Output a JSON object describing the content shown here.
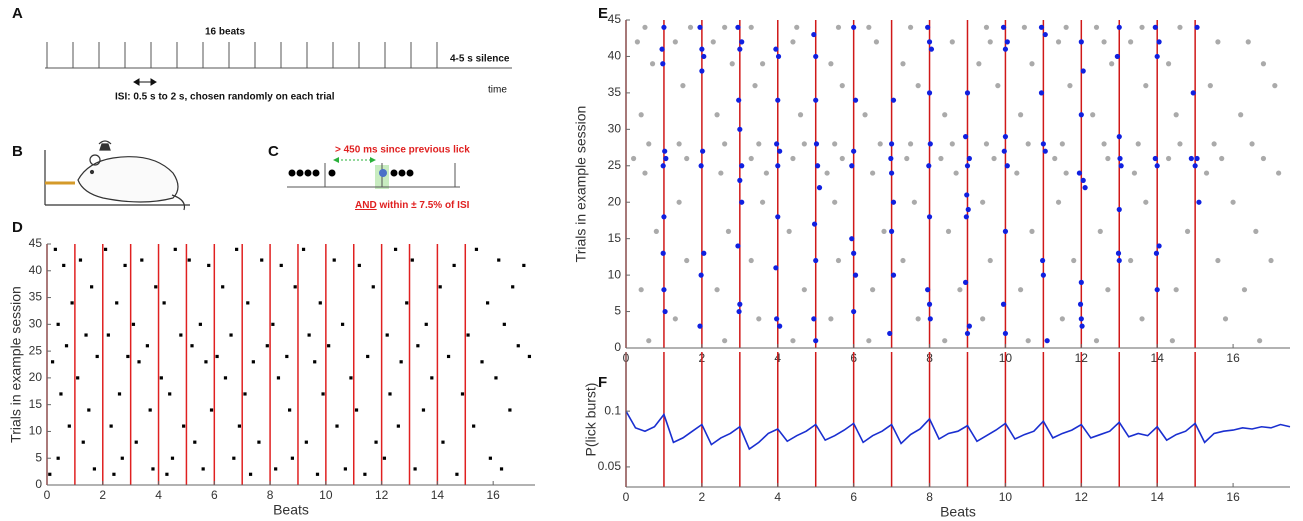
{
  "panel_a": {
    "label": "A",
    "beats_text": "16 beats",
    "silence_text": "4-5 s silence",
    "time_text": "time",
    "isi_text": "ISI: 0.5 s to 2 s, chosen randomly on each trial"
  },
  "panel_b": {
    "label": "B"
  },
  "panel_c": {
    "label": "C",
    "lick_text": "> 450 ms since previous lick",
    "and_text": "AND",
    "within_text": " within ± 7.5% of ISI"
  },
  "chart_data": [
    {
      "type": "scatter",
      "panel": "D",
      "xlabel": "Beats",
      "ylabel": "Trials in example session",
      "xlim": [
        0,
        17.5
      ],
      "ylim": [
        0,
        45
      ],
      "xticks": [
        0,
        2,
        4,
        6,
        8,
        10,
        12,
        14,
        16
      ],
      "yticks": [
        0,
        5,
        10,
        15,
        20,
        25,
        30,
        35,
        40,
        45
      ],
      "beat_lines": [
        0,
        1,
        2,
        3,
        4,
        5,
        6,
        7,
        8,
        9,
        10,
        11,
        12,
        13,
        14,
        15
      ],
      "beat_line_color": "#e02020",
      "series": [
        {
          "color": "#000000",
          "x": [
            0.3,
            2.1,
            4.6,
            6.8,
            9.2,
            12.5,
            15.4,
            1.2,
            3.4,
            5.1,
            7.7,
            10.3,
            13.1,
            16.2,
            0.6,
            2.8,
            5.8,
            8.4,
            11.2,
            14.6,
            17.1,
            1.6,
            3.9,
            6.3,
            8.9,
            11.7,
            14.1,
            16.7,
            0.9,
            2.5,
            4.2,
            7.2,
            9.8,
            12.9,
            15.8,
            0.4,
            3.1,
            5.5,
            8.1,
            10.6,
            13.6,
            16.4,
            1.4,
            2.2,
            4.8,
            6.6,
            9.4,
            12.2,
            15.1,
            0.7,
            3.6,
            5.2,
            7.9,
            10.1,
            13.3,
            16.9,
            1.8,
            2.9,
            6.1,
            8.6,
            11.5,
            14.4,
            17.3,
            0.2,
            3.3,
            5.7,
            7.4,
            9.6,
            12.7,
            15.6,
            1.1,
            4.1,
            6.4,
            8.3,
            10.9,
            13.8,
            16.1,
            0.5,
            2.6,
            4.4,
            7.1,
            9.9,
            12.3,
            14.9,
            1.5,
            3.7,
            5.9,
            8.7,
            11.1,
            13.5,
            16.6,
            0.8,
            2.3,
            4.9,
            6.9,
            10.4,
            12.6,
            15.3,
            1.3,
            3.2,
            5.3,
            7.6,
            9.3,
            11.8,
            14.2,
            0.4,
            2.7,
            4.5,
            6.7,
            8.8,
            12.1,
            15.9,
            1.7,
            3.8,
            5.6,
            8.2,
            10.7,
            13.2,
            16.3,
            0.1,
            2.4,
            4.3,
            7.3,
            9.7,
            11.4,
            14.7
          ],
          "values": [
            44,
            44,
            44,
            44,
            44,
            44,
            44,
            42,
            42,
            42,
            42,
            42,
            42,
            42,
            41,
            41,
            41,
            41,
            41,
            41,
            41,
            37,
            37,
            37,
            37,
            37,
            37,
            37,
            34,
            34,
            34,
            34,
            34,
            34,
            34,
            30,
            30,
            30,
            30,
            30,
            30,
            30,
            28,
            28,
            28,
            28,
            28,
            28,
            28,
            26,
            26,
            26,
            26,
            26,
            26,
            26,
            24,
            24,
            24,
            24,
            24,
            24,
            24,
            23,
            23,
            23,
            23,
            23,
            23,
            23,
            20,
            20,
            20,
            20,
            20,
            20,
            20,
            17,
            17,
            17,
            17,
            17,
            17,
            17,
            14,
            14,
            14,
            14,
            14,
            14,
            14,
            11,
            11,
            11,
            11,
            11,
            11,
            11,
            8,
            8,
            8,
            8,
            8,
            8,
            8,
            5,
            5,
            5,
            5,
            5,
            5,
            5,
            3,
            3,
            3,
            3,
            3,
            3,
            3,
            2,
            2,
            2,
            2,
            2,
            2,
            2
          ]
        }
      ]
    },
    {
      "type": "scatter",
      "panel": "E",
      "ylabel": "Trials in example session",
      "xlim": [
        0,
        17.5
      ],
      "ylim": [
        0,
        45
      ],
      "xticks": [
        0,
        2,
        4,
        6,
        8,
        10,
        12,
        14,
        16
      ],
      "yticks": [
        0,
        5,
        10,
        15,
        20,
        25,
        30,
        35,
        40,
        45
      ],
      "beat_lines": [
        0,
        1,
        2,
        3,
        4,
        5,
        6,
        7,
        8,
        9,
        10,
        11,
        12,
        13,
        14,
        15
      ],
      "beat_line_color": "#d01818",
      "series": [
        {
          "color": "#aaaaaa",
          "x": [
            0.5,
            1.7,
            2.6,
            3.3,
            4.5,
            5.6,
            6.4,
            7.5,
            9.5,
            10.5,
            11.6,
            12.4,
            13.6,
            14.6,
            0.3,
            1.3,
            2.3,
            4.4,
            6.6,
            8.6,
            9.6,
            11.4,
            12.6,
            13.3,
            15.6,
            16.4,
            0.7,
            2.8,
            3.6,
            5.4,
            7.3,
            9.3,
            10.7,
            12.8,
            14.3,
            16.8,
            1.5,
            3.4,
            5.7,
            7.7,
            9.8,
            11.7,
            13.7,
            15.4,
            17.1,
            0.4,
            2.4,
            4.6,
            6.3,
            8.4,
            10.4,
            12.3,
            14.5,
            16.2,
            0.6,
            1.4,
            2.6,
            3.5,
            4.7,
            5.5,
            6.7,
            7.5,
            8.6,
            9.5,
            10.6,
            11.5,
            12.6,
            13.5,
            14.6,
            15.5,
            16.5,
            0.2,
            1.6,
            3.3,
            4.4,
            5.7,
            7.4,
            8.3,
            9.7,
            11.3,
            12.7,
            14.3,
            15.7,
            16.8,
            0.5,
            2.5,
            3.7,
            5.3,
            6.5,
            8.7,
            10.3,
            11.6,
            13.4,
            15.3,
            17.2,
            1.4,
            3.6,
            5.5,
            7.6,
            9.4,
            11.4,
            13.7,
            16.0,
            0.8,
            2.7,
            4.3,
            6.8,
            8.5,
            10.7,
            12.5,
            14.8,
            16.6,
            1.6,
            3.3,
            5.6,
            7.3,
            9.6,
            11.8,
            13.3,
            15.6,
            17.0,
            0.4,
            2.4,
            4.7,
            6.5,
            8.8,
            10.4,
            12.7,
            14.5,
            16.3,
            1.3,
            3.5,
            5.4,
            7.7,
            9.4,
            11.5,
            13.6,
            15.8,
            0.6,
            2.6,
            4.4,
            6.4,
            8.4,
            10.6,
            12.4,
            14.4,
            16.7
          ],
          "values": [
            44,
            44,
            44,
            44,
            44,
            44,
            44,
            44,
            44,
            44,
            44,
            44,
            44,
            44,
            42,
            42,
            42,
            42,
            42,
            42,
            42,
            42,
            42,
            42,
            42,
            42,
            39,
            39,
            39,
            39,
            39,
            39,
            39,
            39,
            39,
            39,
            36,
            36,
            36,
            36,
            36,
            36,
            36,
            36,
            36,
            32,
            32,
            32,
            32,
            32,
            32,
            32,
            32,
            32,
            28,
            28,
            28,
            28,
            28,
            28,
            28,
            28,
            28,
            28,
            28,
            28,
            28,
            28,
            28,
            28,
            28,
            26,
            26,
            26,
            26,
            26,
            26,
            26,
            26,
            26,
            26,
            26,
            26,
            26,
            24,
            24,
            24,
            24,
            24,
            24,
            24,
            24,
            24,
            24,
            24,
            20,
            20,
            20,
            20,
            20,
            20,
            20,
            20,
            16,
            16,
            16,
            16,
            16,
            16,
            16,
            16,
            16,
            12,
            12,
            12,
            12,
            12,
            12,
            12,
            12,
            12,
            8,
            8,
            8,
            8,
            8,
            8,
            8,
            8,
            8,
            4,
            4,
            4,
            4,
            4,
            4,
            4,
            4,
            1,
            1,
            1,
            1,
            1,
            1,
            1,
            1,
            1
          ]
        },
        {
          "color": "#1020e0",
          "x": [
            1.0,
            0.95,
            0.97,
            1.02,
            0.98,
            1.05,
            1.0,
            0.98,
            1.0,
            1.03,
            1.95,
            2.0,
            2.05,
            2.0,
            2.02,
            1.98,
            2.05,
            1.98,
            1.95,
            2.95,
            3.0,
            3.05,
            2.97,
            3.0,
            3.05,
            3.0,
            3.05,
            2.95,
            3.0,
            2.98,
            3.95,
            4.02,
            4.0,
            3.97,
            4.05,
            4.0,
            4.0,
            3.95,
            3.97,
            4.05,
            4.95,
            5.0,
            5.0,
            5.02,
            5.05,
            5.1,
            4.97,
            5.0,
            4.95,
            5.0,
            6.0,
            6.05,
            6.0,
            5.95,
            5.95,
            6.0,
            6.05,
            6.0,
            7.05,
            7.0,
            6.98,
            7.0,
            7.05,
            7.0,
            7.05,
            6.95,
            7.95,
            8.0,
            8.05,
            8.0,
            8.02,
            7.98,
            8.0,
            7.95,
            8.0,
            8.02,
            9.0,
            8.95,
            9.05,
            9.0,
            8.98,
            9.02,
            8.97,
            8.95,
            9.05,
            9.0,
            9.95,
            10.05,
            10.0,
            10.0,
            9.97,
            10.05,
            10.0,
            9.95,
            10.0,
            10.95,
            11.05,
            10.95,
            11.0,
            11.05,
            10.98,
            11.0,
            11.1,
            12.0,
            12.05,
            12.0,
            11.95,
            12.05,
            12.1,
            12.0,
            11.98,
            12.0,
            12.02,
            13.0,
            12.95,
            13.0,
            13.02,
            13.05,
            13.0,
            12.98,
            13.0,
            13.95,
            14.05,
            14.0,
            13.95,
            14.0,
            14.05,
            13.98,
            14.0,
            15.05,
            14.95,
            14.9,
            15.05,
            15.0,
            15.1
          ],
          "values": [
            44,
            41,
            39,
            27,
            25,
            26,
            18,
            13,
            8,
            5,
            44,
            41,
            40,
            38,
            27,
            25,
            13,
            10,
            3,
            44,
            41,
            42,
            34,
            30,
            25,
            23,
            20,
            14,
            6,
            5,
            41,
            40,
            34,
            28,
            27,
            25,
            18,
            11,
            4,
            3,
            43,
            40,
            34,
            28,
            25,
            22,
            17,
            12,
            4,
            1,
            44,
            34,
            27,
            25,
            15,
            13,
            10,
            5,
            34,
            28,
            26,
            24,
            20,
            16,
            10,
            2,
            44,
            42,
            41,
            35,
            28,
            25,
            18,
            8,
            6,
            4,
            35,
            29,
            26,
            25,
            21,
            19,
            18,
            9,
            3,
            2,
            44,
            42,
            41,
            29,
            27,
            25,
            16,
            6,
            2,
            44,
            43,
            35,
            28,
            27,
            12,
            10,
            1,
            42,
            38,
            32,
            24,
            23,
            22,
            9,
            6,
            4,
            3,
            44,
            40,
            29,
            26,
            25,
            19,
            13,
            12,
            44,
            42,
            40,
            26,
            25,
            14,
            13,
            8,
            44,
            35,
            26,
            26,
            25,
            20
          ]
        }
      ]
    },
    {
      "type": "line",
      "panel": "F",
      "xlabel": "Beats",
      "ylabel": "P(lick burst)",
      "xlim": [
        0,
        17.5
      ],
      "ylim": [
        0.032,
        0.153
      ],
      "xticks": [
        0,
        2,
        4,
        6,
        8,
        10,
        12,
        14,
        16
      ],
      "yticks": [
        0.05,
        0.1
      ],
      "beat_lines": [
        0,
        1,
        2,
        3,
        4,
        5,
        6,
        7,
        8,
        9,
        10,
        11,
        12,
        13,
        14,
        15
      ],
      "beat_line_color": "#d01818",
      "series": [
        {
          "color": "#1a2fd0",
          "x": [
            0,
            0.25,
            0.5,
            0.75,
            1,
            1.25,
            1.5,
            1.75,
            2,
            2.25,
            2.5,
            2.75,
            3,
            3.25,
            3.5,
            3.75,
            4,
            4.25,
            4.5,
            4.75,
            5,
            5.25,
            5.5,
            5.75,
            6,
            6.25,
            6.5,
            6.75,
            7,
            7.25,
            7.5,
            7.75,
            8,
            8.25,
            8.5,
            8.75,
            9,
            9.25,
            9.5,
            9.75,
            10,
            10.25,
            10.5,
            10.75,
            11,
            11.25,
            11.5,
            11.75,
            12,
            12.25,
            12.5,
            12.75,
            13,
            13.25,
            13.5,
            13.75,
            14,
            14.25,
            14.5,
            14.75,
            15,
            15.25,
            15.5,
            15.75,
            16,
            16.25,
            16.5,
            16.75,
            17,
            17.25,
            17.5
          ],
          "values": [
            0.1,
            0.085,
            0.082,
            0.086,
            0.097,
            0.072,
            0.076,
            0.082,
            0.088,
            0.07,
            0.076,
            0.08,
            0.086,
            0.066,
            0.072,
            0.08,
            0.084,
            0.073,
            0.078,
            0.082,
            0.088,
            0.074,
            0.078,
            0.083,
            0.089,
            0.072,
            0.078,
            0.082,
            0.088,
            0.071,
            0.079,
            0.084,
            0.093,
            0.075,
            0.08,
            0.082,
            0.087,
            0.073,
            0.078,
            0.083,
            0.089,
            0.075,
            0.079,
            0.082,
            0.091,
            0.076,
            0.08,
            0.083,
            0.088,
            0.076,
            0.079,
            0.082,
            0.09,
            0.077,
            0.08,
            0.078,
            0.086,
            0.074,
            0.079,
            0.082,
            0.089,
            0.072,
            0.08,
            0.082,
            0.083,
            0.085,
            0.084,
            0.086,
            0.085,
            0.088,
            0.086
          ]
        }
      ]
    }
  ]
}
